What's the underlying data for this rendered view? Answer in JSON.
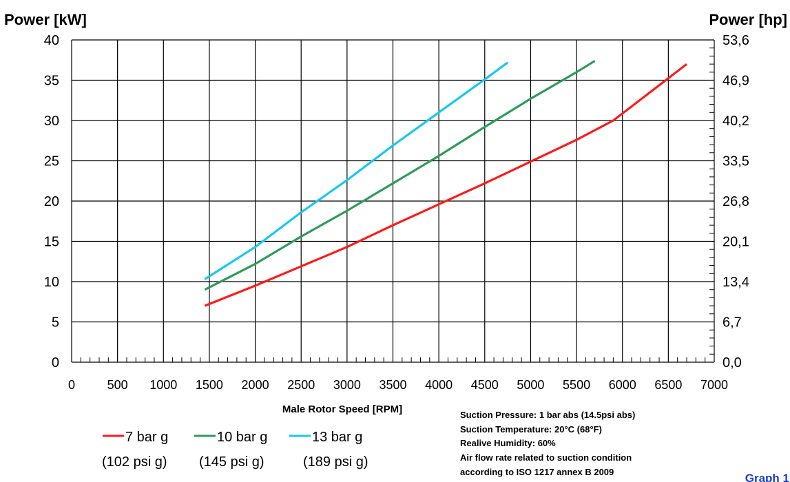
{
  "chart_data": {
    "type": "line",
    "y_left_title": "Power [kW]",
    "y_right_title": "Power [hp]",
    "xlabel": "Male Rotor Speed [RPM]",
    "xlim": [
      0,
      7000
    ],
    "ylim": [
      0,
      40
    ],
    "x_ticks": [
      "0",
      "500",
      "1000",
      "1500",
      "2000",
      "2500",
      "3000",
      "3500",
      "4000",
      "4500",
      "5000",
      "5500",
      "6000",
      "6500",
      "7000"
    ],
    "x_tick_values": [
      0,
      500,
      1000,
      1500,
      2000,
      2500,
      3000,
      3500,
      4000,
      4500,
      5000,
      5500,
      6000,
      6500,
      7000
    ],
    "y_ticks": [
      "0",
      "5",
      "10",
      "15",
      "20",
      "25",
      "30",
      "35",
      "40"
    ],
    "y_tick_values": [
      0,
      5,
      10,
      15,
      20,
      25,
      30,
      35,
      40
    ],
    "y_right_ticks": [
      "0,0",
      "6,7",
      "13,4",
      "20,1",
      "26,8",
      "33,5",
      "40,2",
      "46,9",
      "53,6"
    ],
    "grid": true,
    "series": [
      {
        "name": "7 bar g",
        "subtitle": "(102 psi g)",
        "color": "#ff1a1a",
        "x": [
          1450,
          2000,
          2500,
          3000,
          3500,
          4000,
          4500,
          5000,
          5500,
          5900,
          6300,
          6700
        ],
        "y": [
          7.0,
          9.5,
          11.9,
          14.3,
          17.0,
          19.6,
          22.2,
          24.9,
          27.6,
          30.0,
          33.5,
          37.0
        ]
      },
      {
        "name": "10 bar g",
        "subtitle": "(145 psi g)",
        "color": "#2e9b5a",
        "x": [
          1450,
          2000,
          2500,
          3000,
          3500,
          4000,
          4500,
          5000,
          5500,
          5700
        ],
        "y": [
          9.0,
          12.2,
          15.6,
          18.8,
          22.2,
          25.6,
          29.2,
          32.7,
          36.0,
          37.4
        ]
      },
      {
        "name": "13 bar g",
        "subtitle": "(189 psi g)",
        "color": "#19c8f0",
        "x": [
          1450,
          2000,
          2500,
          3000,
          3500,
          4000,
          4500,
          4750
        ],
        "y": [
          10.3,
          14.3,
          18.6,
          22.6,
          26.9,
          31.0,
          35.1,
          37.2
        ]
      }
    ],
    "notes": [
      "Suction Pressure:   1 bar abs (14.5psi abs)",
      "Suction Temperature:  20°C (68°F)",
      "Realive Humidity:   60%",
      "Air flow rate related to suction condition",
      "according to ISO 1217 annex B 2009"
    ],
    "graph_label": "Graph 1"
  }
}
